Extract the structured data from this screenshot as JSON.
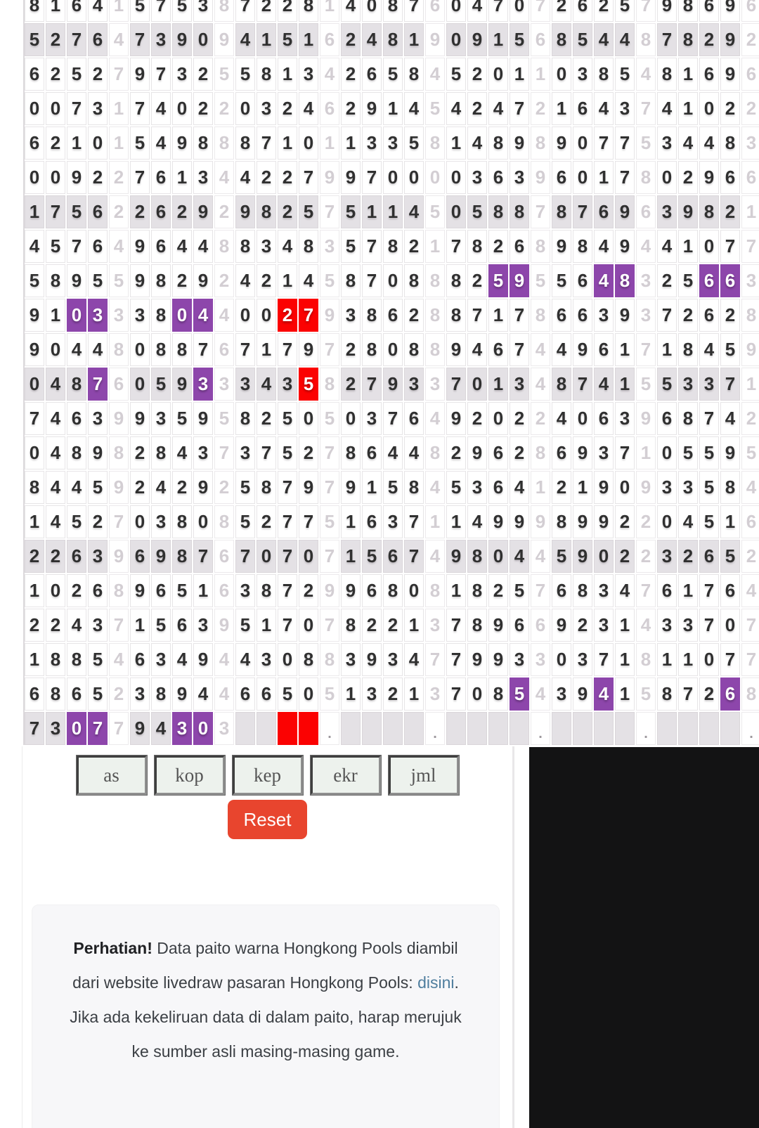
{
  "table": {
    "columns": 35,
    "group_size": 5,
    "colors": {
      "alt_row": "#e4e1e5",
      "purple": "#8d46ab",
      "red": "#fb0202",
      "digit": "#303030",
      "sum_digit": "#d3ced3"
    },
    "alt_rows": [
      1,
      6,
      11,
      16,
      21
    ],
    "rows": [
      {
        "cells": "81641575387228140876047072625798696"
      },
      {
        "cells": "52764739094151624819091568544878292"
      },
      {
        "cells": "62527973255813426584520110385481696"
      },
      {
        "cells": "00731740220324629145424721643741022"
      },
      {
        "cells": "62101549888710113358148989077534483"
      },
      {
        "cells": "00922761344227997000036396017802966"
      },
      {
        "cells": "17562262929825751145058878769639821"
      },
      {
        "cells": "45764964488348357821782689849441077"
      },
      {
        "cells": "58955982924214587088825955648325663",
        "purple": [
          22,
          23,
          27,
          28,
          32,
          33
        ]
      },
      {
        "cells": "91033380440027938628871786639372628",
        "purple": [
          2,
          3,
          7,
          8
        ],
        "red": [
          12,
          13
        ]
      },
      {
        "cells": "90448088767179728088946744961718459"
      },
      {
        "cells": "04876059333435827933701348741553371",
        "purple": [
          3,
          8
        ],
        "red": [
          13
        ]
      },
      {
        "cells": "74639935958250503764920224063968742"
      },
      {
        "cells": "04898284373752786448296286937105595"
      },
      {
        "cells": "84459242925879791584536412190933584"
      },
      {
        "cells": "14527038085277516371149998992204516"
      },
      {
        "cells": "22639698767070715674980445902232652"
      },
      {
        "cells": "10268965163872996808182576834761764"
      },
      {
        "cells": "22437156395170782213789669231433707"
      },
      {
        "cells": "18854634944308839347799330371811077"
      },
      {
        "cells": "68652389446650513213708543941587268",
        "purple": [
          23,
          27,
          33
        ]
      },
      {
        "cells": "7307794303    .    .    .    .    .",
        "purple": [
          2,
          3,
          7,
          8
        ],
        "red": [
          12,
          13
        ]
      }
    ]
  },
  "filters": {
    "buttons": [
      "as",
      "kop",
      "kep",
      "ekr",
      "jml"
    ],
    "reset_label": "Reset"
  },
  "notice": {
    "bold": "Perhatian!",
    "text_before_link": " Data paito warna Hongkong Pools diambil dari website livedraw pasaran Hongkong Pools: ",
    "link": "disini",
    "text_after_link": ". Jika ada kekeliruan data di dalam paito, harap merujuk ke sumber asli masing-masing game."
  }
}
